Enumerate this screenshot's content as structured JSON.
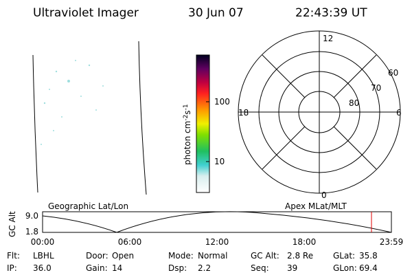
{
  "header": {
    "instrument": "Ultraviolet Imager",
    "date": "30 Jun 07",
    "time": "22:43:39 UT"
  },
  "colorbar": {
    "label": "photon cm",
    "exp1": "-2",
    "unit2": "s",
    "exp2": "-1",
    "ticks": [
      "100",
      "10"
    ]
  },
  "polar": {
    "mlt_labels": [
      "12",
      "18",
      "6",
      "0"
    ],
    "lat_labels": [
      "60",
      "70",
      "80"
    ]
  },
  "timeline": {
    "left_title": "Geographic Lat/Lon",
    "right_title": "Apex MLat/MLT",
    "axis_label": "GC Alt",
    "y_labels": [
      "9.0",
      "1.8"
    ],
    "x_labels": [
      "00:00",
      "06:00",
      "12:00",
      "18:00",
      "23:59"
    ]
  },
  "info": {
    "rows": [
      [
        {
          "label": "Flt:",
          "value": "LBHL"
        },
        {
          "label": "Door:",
          "value": "Open"
        },
        {
          "label": "Mode:",
          "value": "Normal"
        },
        {
          "label": "GC Alt:",
          "value": "2.8 Re"
        },
        {
          "label": "GLat:",
          "value": "35.8"
        }
      ],
      [
        {
          "label": "IP:",
          "value": "36.0"
        },
        {
          "label": "Gain:",
          "value": "14"
        },
        {
          "label": "Dsp:",
          "value": "2.2"
        },
        {
          "label": "Seq:",
          "value": "39"
        },
        {
          "label": "GLon:",
          "value": "69.4"
        }
      ]
    ]
  }
}
